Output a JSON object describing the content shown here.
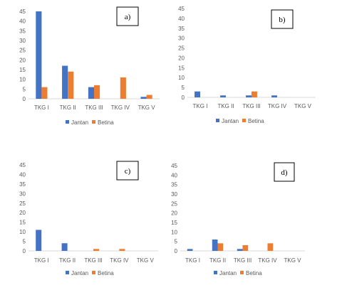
{
  "colors": {
    "jantan": "#4472C4",
    "betina": "#ED7D31",
    "axis": "#D9D9D9",
    "text": "#595959"
  },
  "chart_data": [
    {
      "type": "bar",
      "panel_label": "a)",
      "categories": [
        "TKG I",
        "TKG II",
        "TKG III",
        "TKG IV",
        "TKG V"
      ],
      "series": [
        {
          "name": "Jantan",
          "values": [
            45,
            17,
            6,
            0,
            1
          ]
        },
        {
          "name": "Betina",
          "values": [
            6,
            14,
            7,
            11,
            2
          ]
        }
      ],
      "ylim": [
        0,
        45
      ],
      "yticks": [
        0,
        5,
        10,
        15,
        20,
        25,
        30,
        35,
        40,
        45
      ],
      "legend": "bottom"
    },
    {
      "type": "bar",
      "panel_label": "b)",
      "categories": [
        "TKG I",
        "TKG II",
        "TKG III",
        "TKG IV",
        "TKG V"
      ],
      "series": [
        {
          "name": "Jantan",
          "values": [
            3,
            1,
            1,
            1,
            0
          ]
        },
        {
          "name": "Betina",
          "values": [
            0,
            0,
            3,
            0,
            0
          ]
        }
      ],
      "ylim": [
        0,
        45
      ],
      "yticks": [
        0,
        5,
        10,
        15,
        20,
        25,
        30,
        35,
        40,
        45
      ],
      "legend": "bottom"
    },
    {
      "type": "bar",
      "panel_label": "c)",
      "categories": [
        "TKG I",
        "TKG II",
        "TKG III",
        "TKG IV",
        "TKG V"
      ],
      "series": [
        {
          "name": "Jantan",
          "values": [
            11,
            4,
            0,
            0,
            0
          ]
        },
        {
          "name": "Betina",
          "values": [
            0,
            0,
            1,
            1,
            0
          ]
        }
      ],
      "ylim": [
        0,
        45
      ],
      "yticks": [
        0,
        5,
        10,
        15,
        20,
        25,
        30,
        35,
        40,
        45
      ],
      "legend": "bottom"
    },
    {
      "type": "bar",
      "panel_label": "d)",
      "categories": [
        "TKG I",
        "TKG II",
        "TKG III",
        "TKG IV",
        "TKG V"
      ],
      "series": [
        {
          "name": "Jantan",
          "values": [
            1,
            6,
            1,
            0,
            0
          ]
        },
        {
          "name": "Betina",
          "values": [
            0,
            4,
            3,
            4,
            0
          ]
        }
      ],
      "ylim": [
        0,
        45
      ],
      "yticks": [
        0,
        5,
        10,
        15,
        20,
        25,
        30,
        35,
        40,
        45
      ],
      "legend": "bottom"
    }
  ]
}
